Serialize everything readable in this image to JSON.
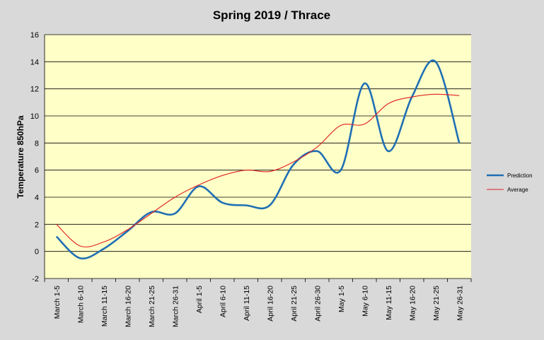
{
  "colors": {
    "background": "#d9d9d9",
    "plot_area": "#ffffc8",
    "gridline": "#000000",
    "prediction": "#1f6fb4",
    "average": "#e0201e"
  },
  "chart_data": {
    "type": "line",
    "title": "Spring 2019 / Thrace",
    "xlabel": "",
    "ylabel": "Temperature 850hPa",
    "ylim": [
      -2,
      16
    ],
    "yticks": [
      -2,
      0,
      2,
      4,
      6,
      8,
      10,
      12,
      14,
      16
    ],
    "grid": true,
    "legend_position": "right",
    "categories": [
      "March 1-5",
      "March 6-10",
      "March 11-15",
      "March 16-20",
      "March 21-25",
      "March 26-31",
      "April 1-5",
      "April 6-10",
      "April 11-15",
      "April 16-20",
      "April 21-25",
      "April 26-30",
      "May 1-5",
      "May 6-10",
      "May 11-15",
      "May 16-20",
      "May 21-25",
      "May 26-31"
    ],
    "series": [
      {
        "name": "Prediction",
        "color": "#1f6fb4",
        "values": [
          1.1,
          -0.5,
          0.2,
          1.5,
          2.9,
          2.8,
          4.8,
          3.6,
          3.4,
          3.4,
          6.4,
          7.4,
          6.0,
          12.4,
          7.4,
          11.4,
          14.0,
          8.0
        ]
      },
      {
        "name": "Average",
        "color": "#e0201e",
        "values": [
          2.0,
          0.4,
          0.7,
          1.6,
          2.8,
          4.0,
          4.9,
          5.6,
          6.0,
          5.9,
          6.6,
          7.7,
          9.3,
          9.4,
          10.9,
          11.4,
          11.6,
          11.5
        ]
      }
    ]
  }
}
